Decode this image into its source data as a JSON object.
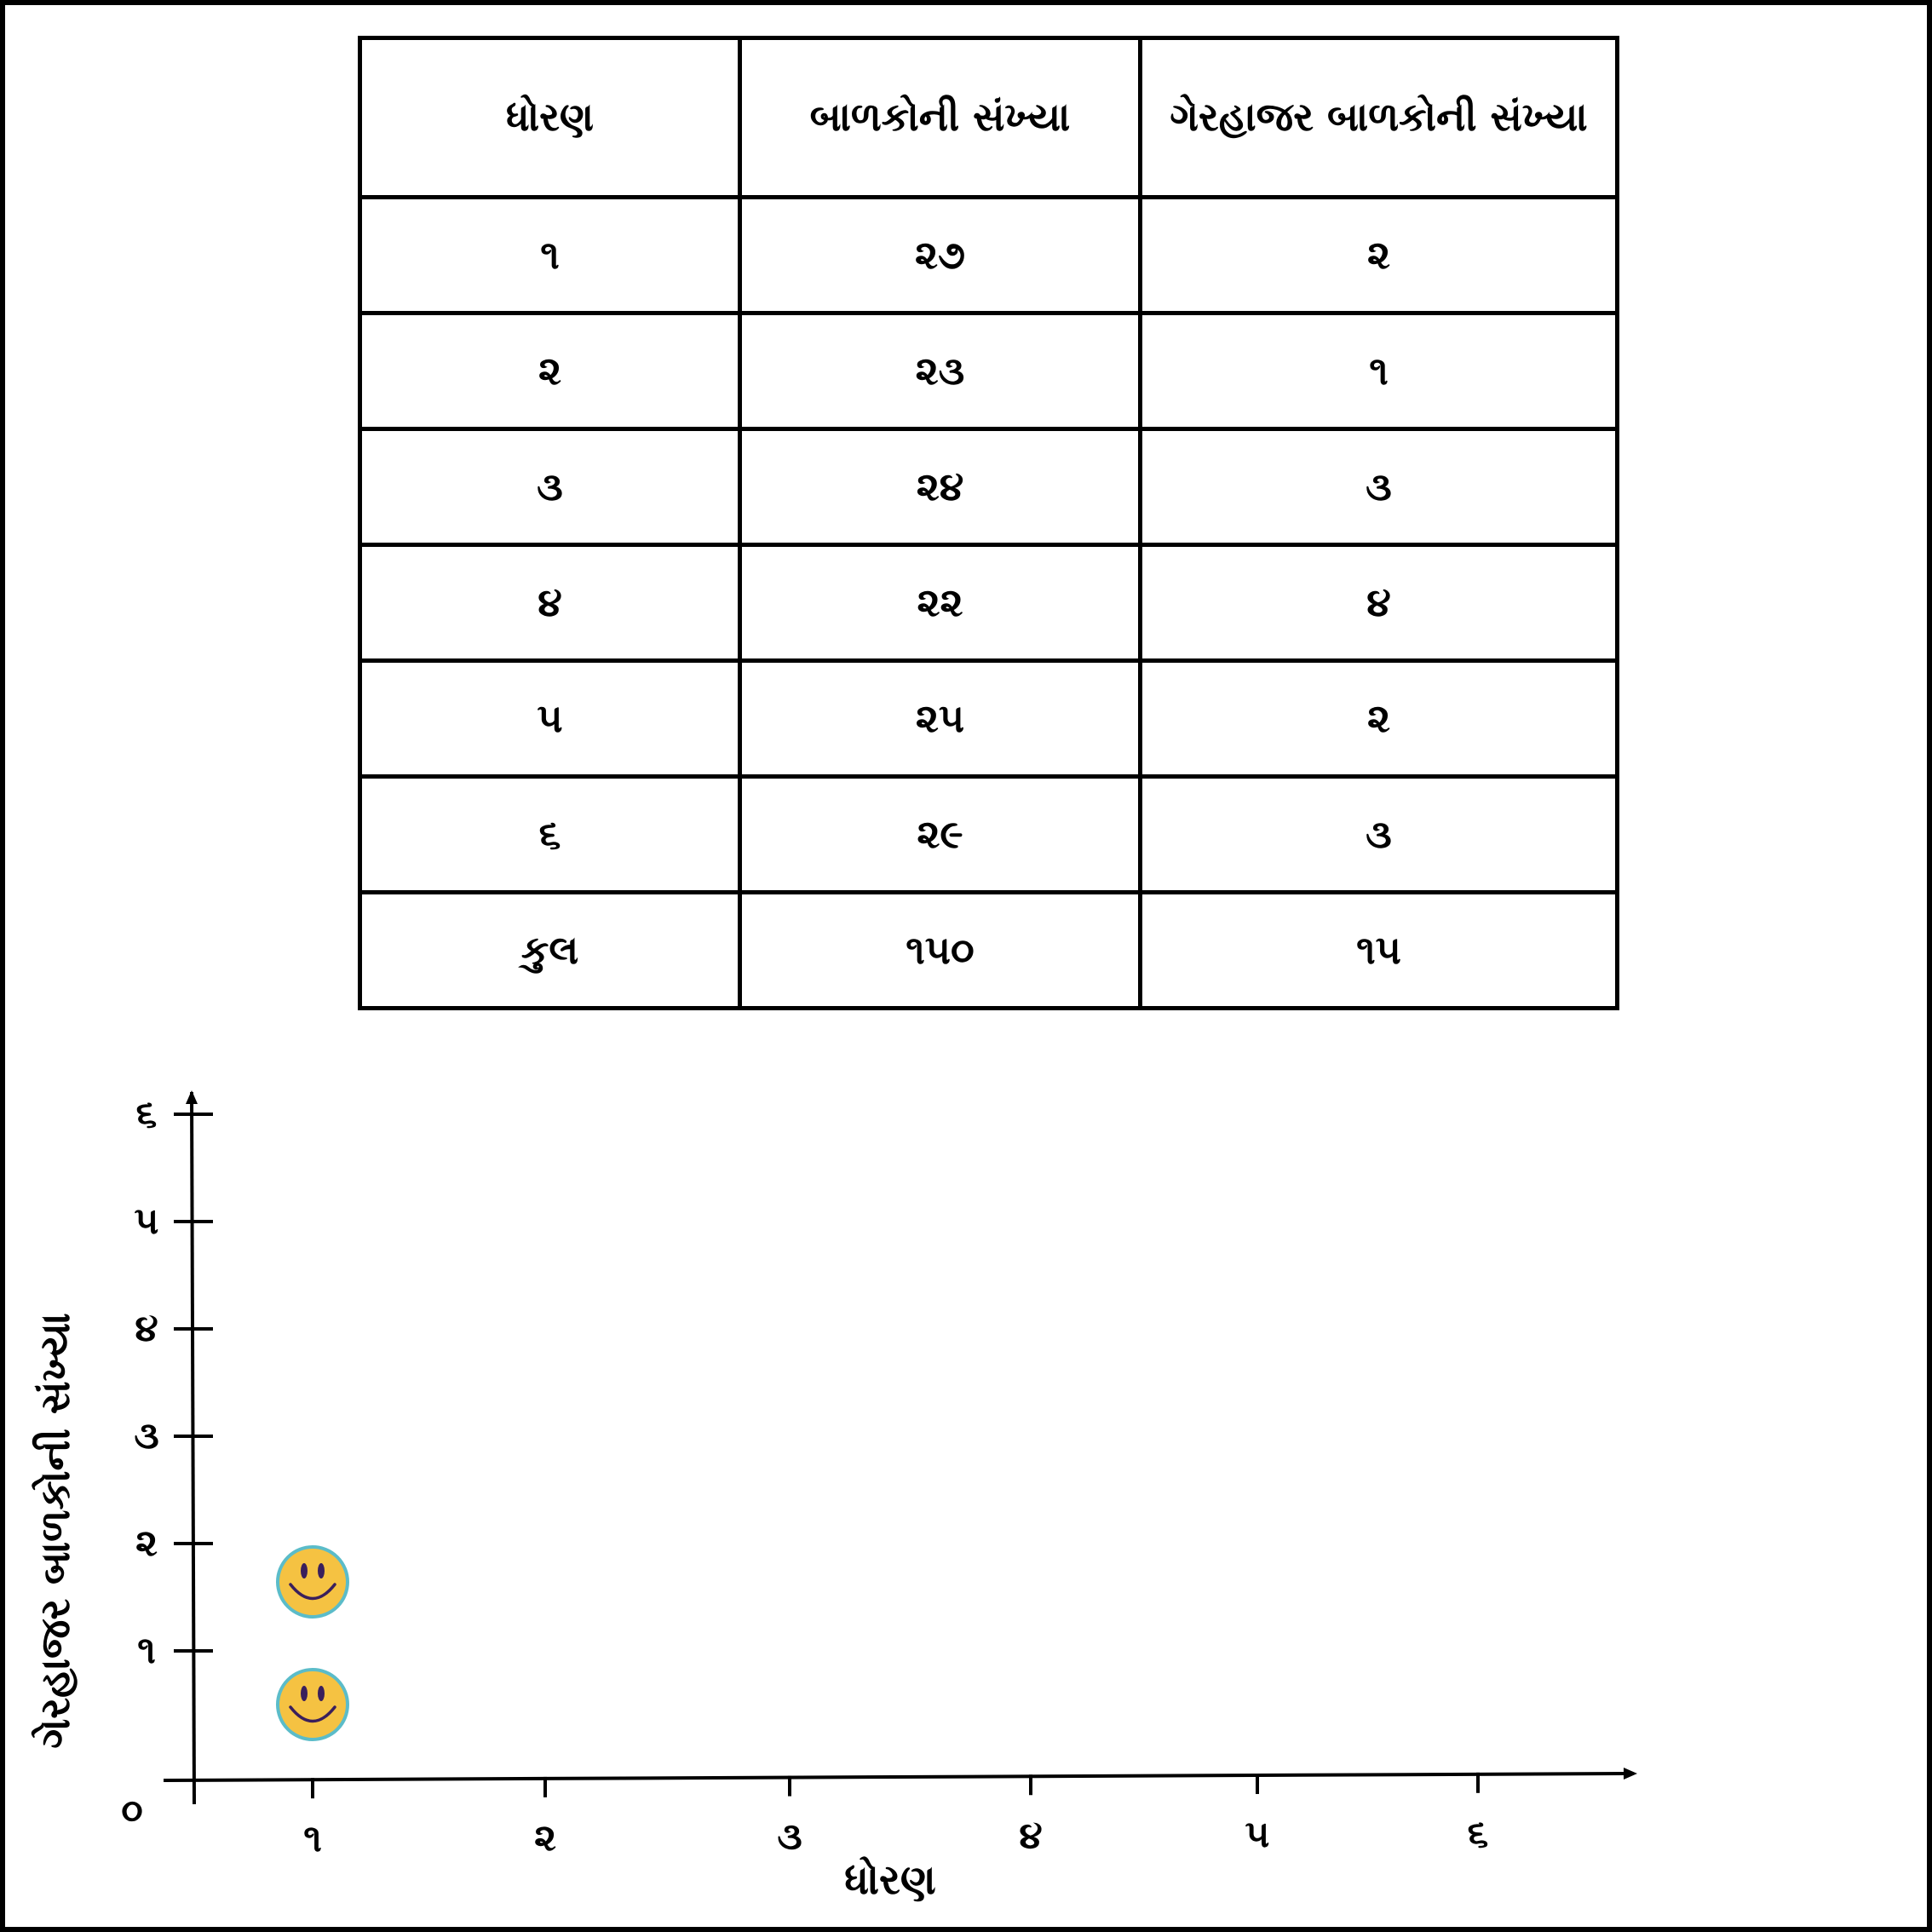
{
  "table": {
    "headers": [
      "ધોરણ",
      "બાળકોની સંખ્યા",
      "ગેરહાજર બાળકોની સંખ્યા"
    ],
    "rows": [
      [
        "૧",
        "૨૭",
        "૨"
      ],
      [
        "૨",
        "૨૩",
        "૧"
      ],
      [
        "૩",
        "૨૪",
        "૩"
      ],
      [
        "૪",
        "૨૨",
        "૪"
      ],
      [
        "૫",
        "૨૫",
        "૨"
      ],
      [
        "૬",
        "૨૯",
        "૩"
      ],
      [
        "કુલ",
        "૧૫૦",
        "૧૫"
      ]
    ]
  },
  "chart_data": {
    "type": "scatter",
    "xlabel": "ધોરણ",
    "ylabel": "ગેરહાજર બાળકોની સંખ્યા",
    "origin_label": "૦",
    "x_ticks": [
      "૧",
      "૨",
      "૩",
      "૪",
      "૫",
      "૬"
    ],
    "y_ticks": [
      "૧",
      "૨",
      "૩",
      "૪",
      "૫",
      "૬"
    ],
    "xlim": [
      0,
      6
    ],
    "ylim": [
      0,
      6
    ],
    "marker": "smiley-face-icon",
    "points": [
      {
        "x": 1,
        "y": 1
      },
      {
        "x": 1,
        "y": 2
      }
    ],
    "colors": {
      "marker_fill": "#f5c242",
      "marker_stroke": "#5bbcc9",
      "marker_face": "#3a1f5c"
    }
  }
}
